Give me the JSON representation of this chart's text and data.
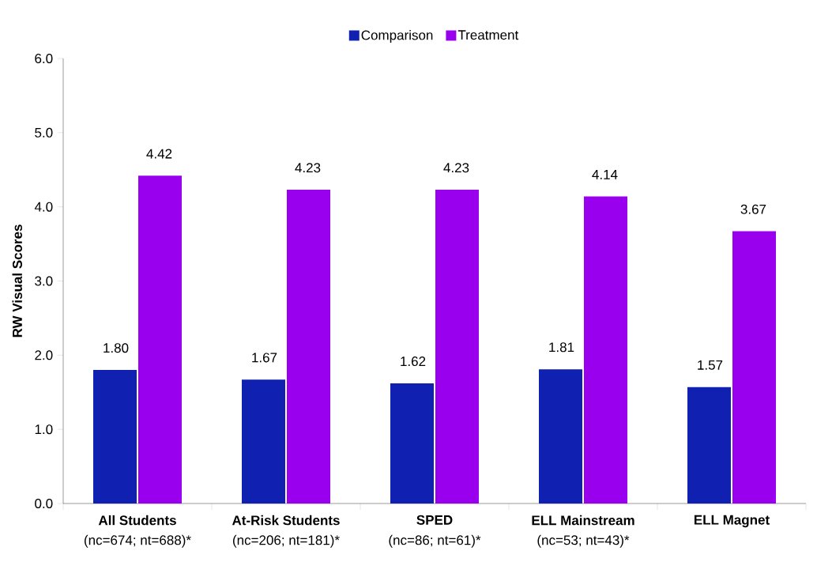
{
  "chart_data": {
    "type": "bar",
    "ylabel": "RW Visual Scores",
    "categories": [
      "All Students",
      "At-Risk Students",
      "SPED",
      "ELL Mainstream",
      "ELL Magnet"
    ],
    "series": [
      {
        "name": "Comparison",
        "color": "#1020b0",
        "values": [
          1.8,
          1.67,
          1.62,
          1.81,
          1.57
        ],
        "value_labels": [
          "1.80",
          "1.67",
          "1.62",
          "1.81",
          "1.57"
        ]
      },
      {
        "name": "Treatment",
        "color": "#9900ee",
        "values": [
          4.42,
          4.23,
          4.23,
          4.14,
          3.67
        ],
        "value_labels": [
          "4.42",
          "4.23",
          "4.23",
          "4.14",
          "3.67"
        ]
      }
    ],
    "annotations": [
      "(nc=674; nt=688)*",
      "(nc=206; nt=181)*",
      "(nc=86; nt=61)*",
      "(nc=53; nt=43)*"
    ],
    "ylim": [
      0,
      6
    ],
    "yticks": [
      {
        "value": 0,
        "label": "0.0"
      },
      {
        "value": 1,
        "label": "1.0"
      },
      {
        "value": 2,
        "label": "2.0"
      },
      {
        "value": 3,
        "label": "3.0"
      },
      {
        "value": 4,
        "label": "4.0"
      },
      {
        "value": 5,
        "label": "5.0"
      },
      {
        "value": 6,
        "label": "6.0"
      }
    ],
    "grid": false,
    "legend": "top"
  }
}
